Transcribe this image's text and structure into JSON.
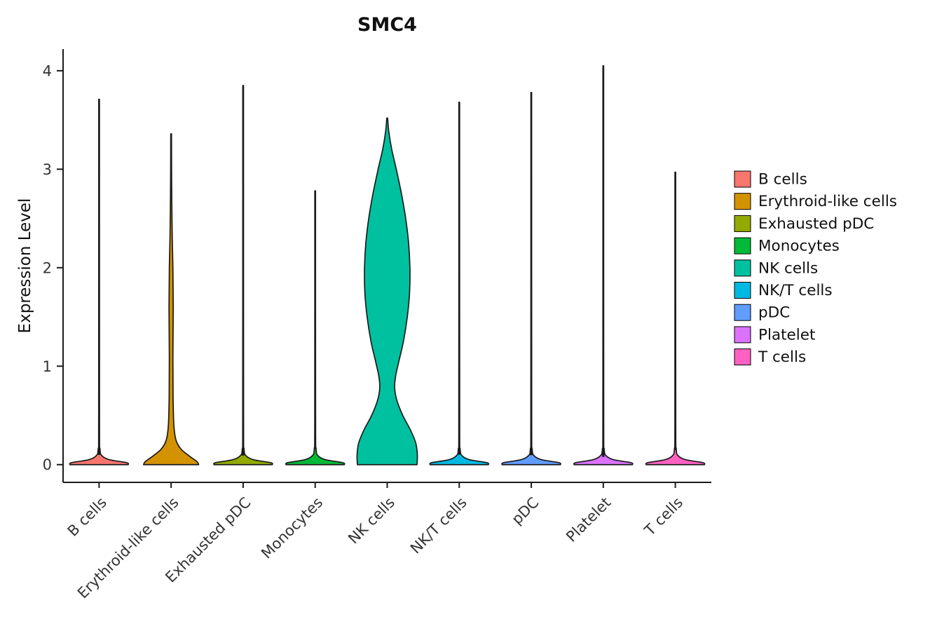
{
  "chart_data": {
    "type": "violin",
    "title": "SMC4",
    "xlabel": "",
    "ylabel": "Expression Level",
    "ylim": [
      -0.18,
      4.22
    ],
    "yticks": [
      0,
      1,
      2,
      3,
      4
    ],
    "categories": [
      "B cells",
      "Erythroid-like cells",
      "Exhausted pDC",
      "Monocytes",
      "NK cells",
      "NK/T cells",
      "pDC",
      "Platelet",
      "T cells"
    ],
    "legend": {
      "position": "right",
      "entries": [
        {
          "label": "B cells",
          "color": "#F8766D"
        },
        {
          "label": "Erythroid-like cells",
          "color": "#D39200"
        },
        {
          "label": "Exhausted pDC",
          "color": "#93AA00"
        },
        {
          "label": "Monocytes",
          "color": "#00BA38"
        },
        {
          "label": "NK cells",
          "color": "#00C19F"
        },
        {
          "label": "NK/T cells",
          "color": "#00B9E3"
        },
        {
          "label": "pDC",
          "color": "#619CFF"
        },
        {
          "label": "Platelet",
          "color": "#DB72FB"
        },
        {
          "label": "T cells",
          "color": "#FF61C3"
        }
      ]
    },
    "axis_color": "#1a1a1a",
    "tick_label_color": "#333333",
    "violin_outline": "#1a1a1a",
    "violins": [
      {
        "category": "B cells",
        "color": "#F8766D",
        "max": 3.71,
        "profile": [
          [
            0,
            0.9
          ],
          [
            0.02,
            0.85
          ],
          [
            0.05,
            0.32
          ],
          [
            0.09,
            0.09
          ],
          [
            0.16,
            0.028
          ],
          [
            0.45,
            0.013
          ],
          [
            3.71,
            0.011
          ]
        ]
      },
      {
        "category": "Erythroid-like cells",
        "color": "#D39200",
        "max": 3.36,
        "profile": [
          [
            0,
            0.85
          ],
          [
            0.03,
            0.8
          ],
          [
            0.09,
            0.55
          ],
          [
            0.16,
            0.3
          ],
          [
            0.25,
            0.15
          ],
          [
            0.4,
            0.085
          ],
          [
            0.7,
            0.06
          ],
          [
            1.1,
            0.055
          ],
          [
            1.6,
            0.065
          ],
          [
            2.0,
            0.055
          ],
          [
            2.3,
            0.035
          ],
          [
            2.7,
            0.02
          ],
          [
            3.0,
            0.014
          ],
          [
            3.36,
            0.011
          ]
        ]
      },
      {
        "category": "Exhausted pDC",
        "color": "#93AA00",
        "max": 3.85,
        "profile": [
          [
            0,
            0.9
          ],
          [
            0.02,
            0.85
          ],
          [
            0.05,
            0.32
          ],
          [
            0.09,
            0.09
          ],
          [
            0.16,
            0.028
          ],
          [
            0.45,
            0.013
          ],
          [
            3.85,
            0.011
          ]
        ]
      },
      {
        "category": "Monocytes",
        "color": "#00BA38",
        "max": 2.78,
        "profile": [
          [
            0,
            0.9
          ],
          [
            0.02,
            0.85
          ],
          [
            0.05,
            0.32
          ],
          [
            0.09,
            0.09
          ],
          [
            0.16,
            0.028
          ],
          [
            0.45,
            0.013
          ],
          [
            2.78,
            0.011
          ]
        ]
      },
      {
        "category": "NK cells",
        "color": "#00C19F",
        "max": 3.52,
        "profile": [
          [
            0,
            0.92
          ],
          [
            0.1,
            0.93
          ],
          [
            0.22,
            0.88
          ],
          [
            0.35,
            0.72
          ],
          [
            0.5,
            0.48
          ],
          [
            0.65,
            0.3
          ],
          [
            0.78,
            0.23
          ],
          [
            0.9,
            0.26
          ],
          [
            1.05,
            0.36
          ],
          [
            1.25,
            0.5
          ],
          [
            1.5,
            0.62
          ],
          [
            1.75,
            0.69
          ],
          [
            2.0,
            0.7
          ],
          [
            2.25,
            0.66
          ],
          [
            2.5,
            0.57
          ],
          [
            2.75,
            0.44
          ],
          [
            3.0,
            0.28
          ],
          [
            3.2,
            0.14
          ],
          [
            3.38,
            0.05
          ],
          [
            3.52,
            0.012
          ]
        ]
      },
      {
        "category": "NK/T cells",
        "color": "#00B9E3",
        "max": 3.68,
        "profile": [
          [
            0,
            0.9
          ],
          [
            0.02,
            0.85
          ],
          [
            0.05,
            0.32
          ],
          [
            0.09,
            0.09
          ],
          [
            0.16,
            0.028
          ],
          [
            0.45,
            0.013
          ],
          [
            3.68,
            0.011
          ]
        ]
      },
      {
        "category": "pDC",
        "color": "#619CFF",
        "max": 3.78,
        "profile": [
          [
            0,
            0.9
          ],
          [
            0.02,
            0.85
          ],
          [
            0.05,
            0.32
          ],
          [
            0.09,
            0.09
          ],
          [
            0.16,
            0.028
          ],
          [
            0.45,
            0.013
          ],
          [
            3.78,
            0.011
          ]
        ]
      },
      {
        "category": "Platelet",
        "color": "#DB72FB",
        "max": 4.05,
        "profile": [
          [
            0,
            0.9
          ],
          [
            0.02,
            0.85
          ],
          [
            0.05,
            0.32
          ],
          [
            0.09,
            0.09
          ],
          [
            0.16,
            0.028
          ],
          [
            0.45,
            0.013
          ],
          [
            4.05,
            0.011
          ]
        ]
      },
      {
        "category": "T cells",
        "color": "#FF61C3",
        "max": 2.97,
        "profile": [
          [
            0,
            0.9
          ],
          [
            0.02,
            0.85
          ],
          [
            0.05,
            0.32
          ],
          [
            0.09,
            0.09
          ],
          [
            0.16,
            0.028
          ],
          [
            0.45,
            0.013
          ],
          [
            2.97,
            0.011
          ]
        ]
      }
    ]
  }
}
